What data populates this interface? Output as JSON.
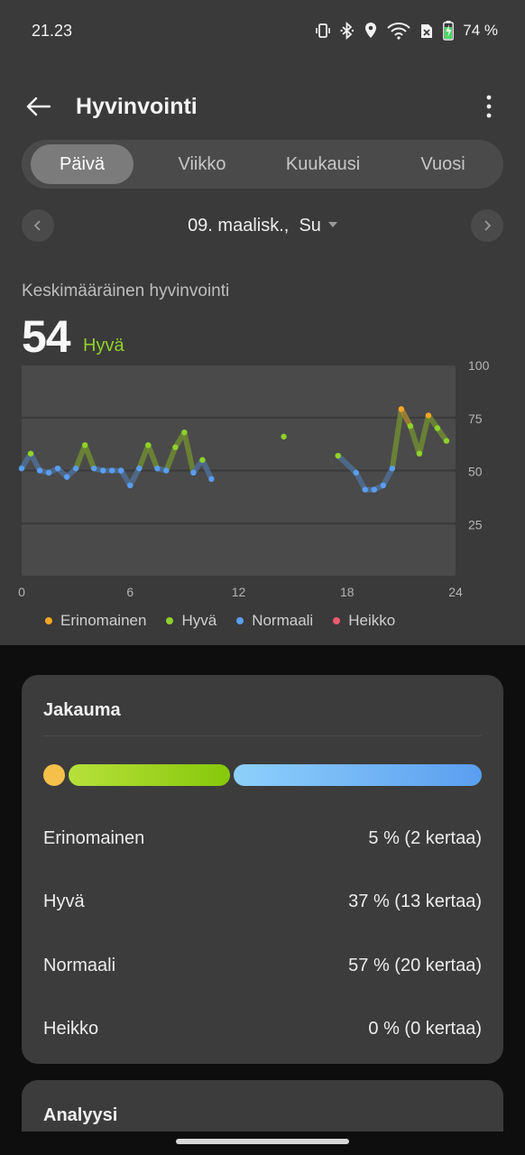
{
  "status": {
    "time": "21.23",
    "battery": "74 %",
    "icons": [
      "vibrate-icon",
      "bluetooth-icon",
      "location-icon",
      "wifi-icon",
      "no-sim-icon",
      "battery-charging-icon"
    ]
  },
  "app_bar": {
    "title": "Hyvinvointi",
    "back_icon": "arrow-left-icon",
    "more_icon": "more-vertical-icon"
  },
  "tabs": [
    {
      "label": "Päivä",
      "active": true
    },
    {
      "label": "Viikko",
      "active": false
    },
    {
      "label": "Kuukausi",
      "active": false
    },
    {
      "label": "Vuosi",
      "active": false
    }
  ],
  "date_nav": {
    "date": "09. maalisk.",
    "day": "Su"
  },
  "summary": {
    "label": "Keskimääräinen hyvinvointi",
    "value": "54",
    "status": "Hyvä"
  },
  "chart_data": {
    "type": "line",
    "title": "",
    "xlabel": "",
    "ylabel": "",
    "x_ticks": [
      "0",
      "6",
      "12",
      "18",
      "24"
    ],
    "y_ticks": [
      "100",
      "75",
      "50",
      "25"
    ],
    "xlim": [
      0,
      24
    ],
    "ylim": [
      0,
      100
    ],
    "grid": true,
    "colors": {
      "Erinomainen": "#f5a623",
      "Hyvä": "#8fd12a",
      "Normaali": "#5a9ef0",
      "Heikko": "#ef5a6f"
    },
    "series": [
      {
        "points": [
          [
            0,
            51
          ],
          [
            0.5,
            58
          ],
          [
            1,
            50
          ],
          [
            1.5,
            49
          ],
          [
            2,
            51
          ],
          [
            2.5,
            47
          ],
          [
            3,
            51
          ],
          [
            3.5,
            62
          ],
          [
            4,
            51
          ],
          [
            4.5,
            50
          ],
          [
            5,
            50
          ],
          [
            5.5,
            50
          ],
          [
            6,
            43
          ],
          [
            6.5,
            51
          ],
          [
            7,
            62
          ],
          [
            7.5,
            51
          ],
          [
            8,
            50
          ],
          [
            8.5,
            61
          ],
          [
            9,
            68
          ],
          [
            9.5,
            49
          ],
          [
            10,
            55
          ],
          [
            10.5,
            46
          ]
        ]
      },
      {
        "points": [
          [
            14.5,
            66
          ]
        ]
      },
      {
        "points": [
          [
            17.5,
            57
          ],
          [
            18.5,
            49
          ],
          [
            19,
            41
          ],
          [
            19.5,
            41
          ],
          [
            20,
            43
          ],
          [
            20.5,
            51
          ],
          [
            21,
            79
          ],
          [
            21.5,
            71
          ],
          [
            22,
            58
          ],
          [
            22.5,
            76
          ],
          [
            23,
            70
          ],
          [
            23.5,
            64
          ]
        ]
      }
    ],
    "legend": [
      "Erinomainen",
      "Hyvä",
      "Normaali",
      "Heikko"
    ],
    "legend_position": "bottom"
  },
  "distribution": {
    "title": "Jakauma",
    "bar": [
      {
        "category": "Erinomainen",
        "fraction": 0.05,
        "color": "#f5c04a"
      },
      {
        "category": "Hyvä",
        "fraction": 0.37,
        "color": "#a5d62e"
      },
      {
        "category": "Normaali",
        "fraction": 0.57,
        "color": "#6fb2f5"
      }
    ],
    "rows": [
      {
        "label": "Erinomainen",
        "value": "5 % (2 kertaa)"
      },
      {
        "label": "Hyvä",
        "value": "37 % (13 kertaa)"
      },
      {
        "label": "Normaali",
        "value": "57 % (20 kertaa)"
      },
      {
        "label": "Heikko",
        "value": "0 % (0 kertaa)"
      }
    ]
  },
  "analysis": {
    "title": "Analyysi"
  }
}
